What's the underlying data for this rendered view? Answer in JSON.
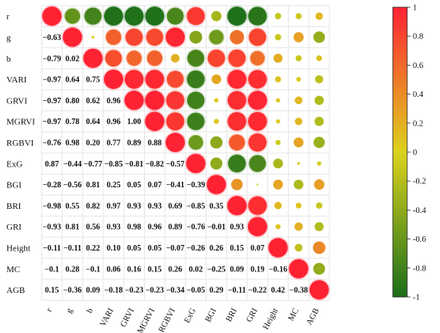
{
  "chart_data": {
    "type": "heatmap",
    "variables": [
      "r",
      "g",
      "b",
      "VARI",
      "GRVI",
      "MGRVI",
      "RGBVI",
      "ExG",
      "BGI",
      "BRI",
      "GRI",
      "Height",
      "MC",
      "AGB"
    ],
    "lower_triangle_labels": [
      [],
      [
        "−0.63"
      ],
      [
        "−0.79",
        "0.02"
      ],
      [
        "−0.97",
        "0.64",
        "0.75"
      ],
      [
        "−0.97",
        "0.80",
        "0.62",
        "0.96"
      ],
      [
        "−0.97",
        "0.78",
        "0.64",
        "0.96",
        "1.00"
      ],
      [
        "−0.76",
        "0.98",
        "0.20",
        "0.77",
        "0.89",
        "0.88"
      ],
      [
        "0.87",
        "−0.44",
        "−0.77",
        "−0.85",
        "−0.81",
        "−0.82",
        "−0.57"
      ],
      [
        "−0.28",
        "−0.56",
        "0.81",
        "0.25",
        "0.05",
        "0.07",
        "−0.41",
        "−0.39"
      ],
      [
        "−0.98",
        "0.55",
        "0.82",
        "0.97",
        "0.93",
        "0.93",
        "0.69",
        "−0.85",
        "0.35"
      ],
      [
        "−0.93",
        "0.81",
        "0.56",
        "0.93",
        "0.98",
        "0.96",
        "0.89",
        "−0.76",
        "−0.01",
        "0.93"
      ],
      [
        "−0.11",
        "−0.11",
        "0.22",
        "0.10",
        "0.05",
        "0.05",
        "−0.07",
        "−0.26",
        "0.26",
        "0.15",
        "0.07"
      ],
      [
        "−0.1",
        "0.28",
        "−0.1",
        "0.06",
        "0.16",
        "0.15",
        "0.26",
        "0.02",
        "−0.25",
        "0.09",
        "0.19",
        "−0.16"
      ],
      [
        "0.15",
        "−0.36",
        "0.09",
        "−0.18",
        "−0.23",
        "−0.23",
        "−0.34",
        "−0.05",
        "0.29",
        "−0.11",
        "−0.22",
        "0.42",
        "−0.38"
      ]
    ],
    "colorbar": {
      "min": -1,
      "max": 1,
      "ticks": [
        1,
        0.8,
        0.6,
        0.4,
        0.2,
        0,
        -0.2,
        -0.4,
        -0.6,
        -0.8,
        -1
      ],
      "tick_labels": [
        "1",
        "0.8",
        "0.6",
        "0.4",
        "0.2",
        "0",
        "-0.2",
        "-0.4",
        "-0.6",
        "-0.8",
        "-1"
      ],
      "colors": [
        "#1a6e1a",
        "#dcd21e",
        "#ff2233"
      ]
    },
    "upper_triangle_style": "circles sized and colored by coefficient",
    "grid": true,
    "legend": "colorbar-right"
  }
}
